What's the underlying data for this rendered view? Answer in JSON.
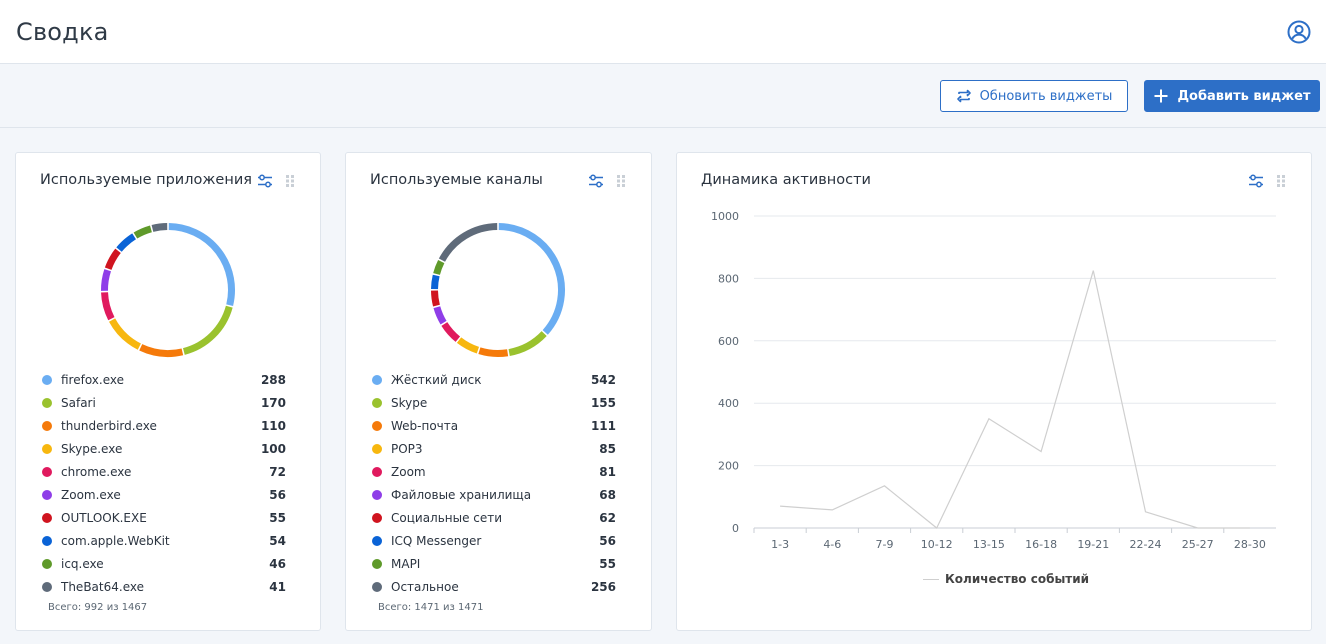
{
  "header": {
    "title": "Сводка",
    "user_icon": "user-circle-icon"
  },
  "toolbar": {
    "refresh_label": "Обновить виджеты",
    "add_label": "Добавить виджет",
    "accent": "#2d6fc7"
  },
  "widgets": {
    "apps": {
      "title": "Используемые приложения",
      "total": "Всего: 992 из 1467",
      "items": [
        {
          "label": "firefox.exe",
          "value": "288",
          "color": "#6aadf2"
        },
        {
          "label": "Safari",
          "value": "170",
          "color": "#9ac22e"
        },
        {
          "label": "thunderbird.exe",
          "value": "110",
          "color": "#f57a0a"
        },
        {
          "label": "Skype.exe",
          "value": "100",
          "color": "#f7b70f"
        },
        {
          "label": "chrome.exe",
          "value": "72",
          "color": "#e01a5e"
        },
        {
          "label": "Zoom.exe",
          "value": "56",
          "color": "#8f3ee8"
        },
        {
          "label": "OUTLOOK.EXE",
          "value": "55",
          "color": "#d0141f"
        },
        {
          "label": "com.apple.WebKit",
          "value": "54",
          "color": "#0a63d6"
        },
        {
          "label": "icq.exe",
          "value": "46",
          "color": "#5f9a2a"
        },
        {
          "label": "TheBat64.exe",
          "value": "41",
          "color": "#5f6b7a"
        }
      ]
    },
    "channels": {
      "title": "Используемые каналы",
      "total": "Всего: 1471 из 1471",
      "items": [
        {
          "label": "Жёсткий диск",
          "value": "542",
          "color": "#6aadf2"
        },
        {
          "label": "Skype",
          "value": "155",
          "color": "#9ac22e"
        },
        {
          "label": "Web-почта",
          "value": "111",
          "color": "#f57a0a"
        },
        {
          "label": "POP3",
          "value": "85",
          "color": "#f7b70f"
        },
        {
          "label": "Zoom",
          "value": "81",
          "color": "#e01a5e"
        },
        {
          "label": "Файловые хранилища",
          "value": "68",
          "color": "#8f3ee8"
        },
        {
          "label": "Социальные сети",
          "value": "62",
          "color": "#d0141f"
        },
        {
          "label": "ICQ Messenger",
          "value": "56",
          "color": "#0a63d6"
        },
        {
          "label": "MAPI",
          "value": "55",
          "color": "#5f9a2a"
        },
        {
          "label": "Остальное",
          "value": "256",
          "color": "#5f6b7a"
        }
      ]
    },
    "activity": {
      "title": "Динамика активности",
      "legend_label": "Количество событий"
    }
  },
  "chart_data": {
    "type": "line",
    "categories": [
      "1-3",
      "4-6",
      "7-9",
      "10-12",
      "13-15",
      "16-18",
      "19-21",
      "22-24",
      "25-27",
      "28-30"
    ],
    "series": [
      {
        "name": "Количество событий",
        "values": [
          70,
          58,
          135,
          0,
          350,
          245,
          825,
          52,
          0,
          0
        ]
      }
    ],
    "ylim": [
      0,
      1000
    ],
    "yticks": [
      "0",
      "200",
      "400",
      "600",
      "800",
      "1000"
    ],
    "grid": true,
    "legend_placement": "bottom",
    "line_color": "#cfcfcf"
  }
}
